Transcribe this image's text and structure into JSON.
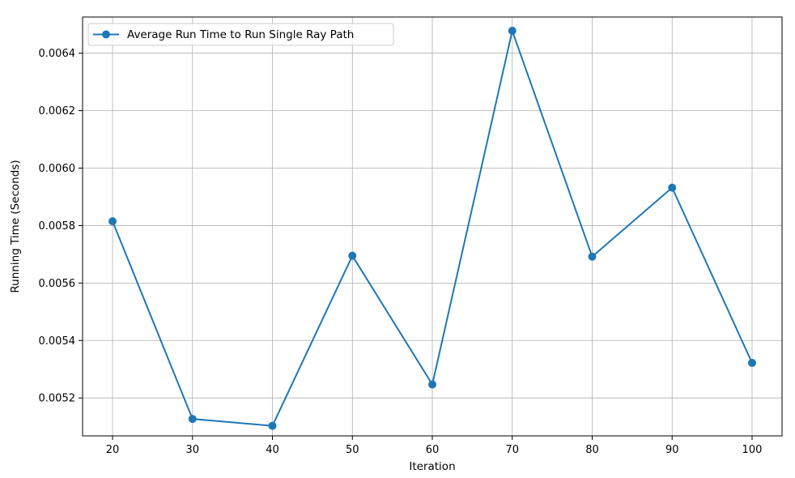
{
  "chart_data": {
    "type": "line",
    "xlabel": "Iteration",
    "ylabel": "Running Time (Seconds)",
    "xlim": [
      16.25,
      103.75
    ],
    "ylim": [
      0.005068,
      0.006526
    ],
    "xticks": [
      20,
      30,
      40,
      50,
      60,
      70,
      80,
      90,
      100
    ],
    "yticks": [
      0.0052,
      0.0054,
      0.0056,
      0.0058,
      0.006,
      0.0062,
      0.0064
    ],
    "ytick_labels": [
      "0.0052",
      "0.0054",
      "0.0056",
      "0.0058",
      "0.0060",
      "0.0062",
      "0.0064"
    ],
    "grid": true,
    "legend_position": "top-left",
    "series": [
      {
        "name": "Average Run Time to Run Single Ray Path",
        "color": "#1f77b4",
        "marker": "circle",
        "x": [
          20,
          30,
          40,
          50,
          60,
          70,
          80,
          90,
          100
        ],
        "y": [
          0.005815,
          0.005127,
          0.005103,
          0.005695,
          0.005247,
          0.006478,
          0.005692,
          0.005932,
          0.005322
        ]
      }
    ]
  }
}
